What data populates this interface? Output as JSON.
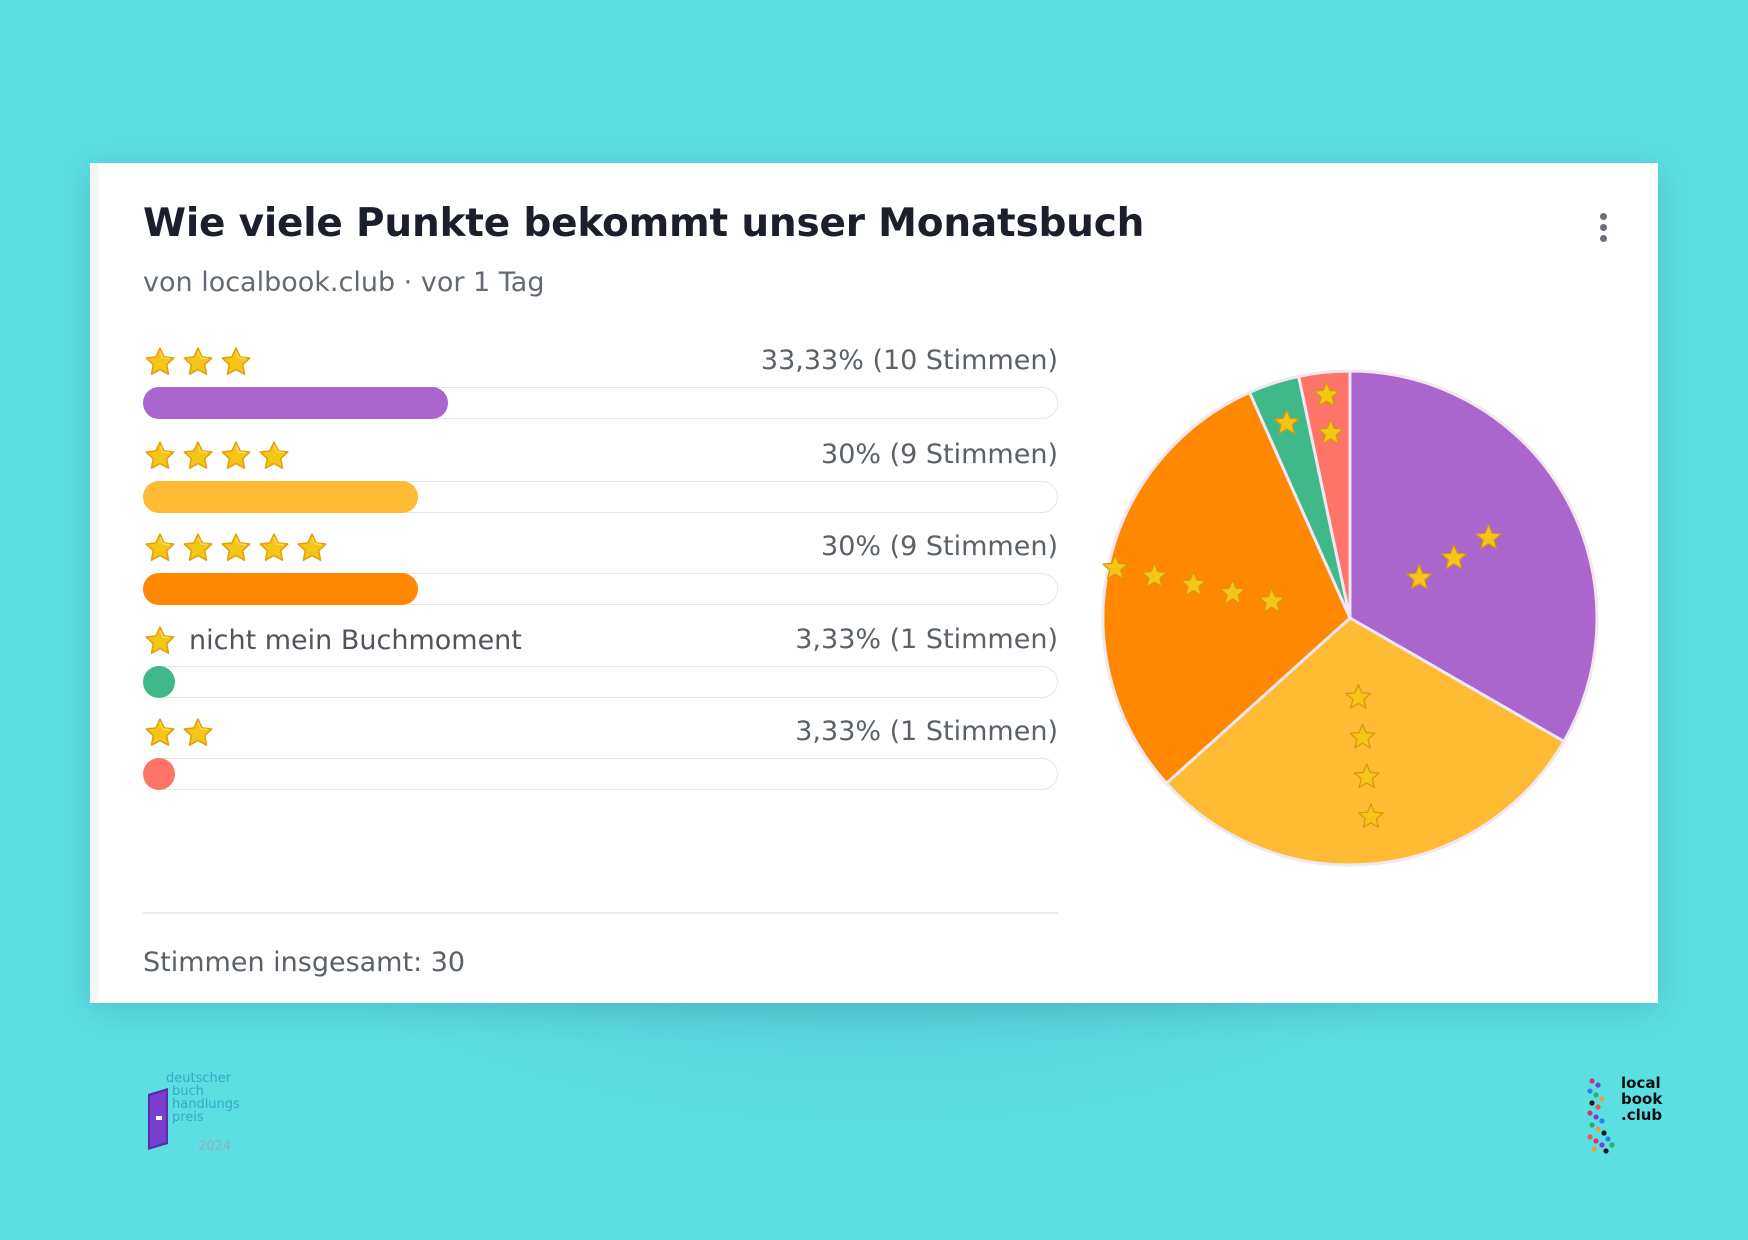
{
  "poll": {
    "title": "Wie viele Punkte bekommt unser Monatsbuch",
    "meta": "von localbook.club · vor 1 Tag",
    "total": "Stimmen insgesamt: 30"
  },
  "options": [
    {
      "stars": 3,
      "label": "",
      "result": "33,33% (10 Stimmen)",
      "percent": 33.33,
      "color": "#aa66cc"
    },
    {
      "stars": 4,
      "label": "",
      "result": "30% (9 Stimmen)",
      "percent": 30,
      "color": "#ffbb33"
    },
    {
      "stars": 5,
      "label": "",
      "result": "30% (9 Stimmen)",
      "percent": 30,
      "color": "#ff8800"
    },
    {
      "stars": 1,
      "label": "nicht mein Buchmoment",
      "result": "3,33% (1 Stimmen)",
      "percent": 3.33,
      "color": "#40b98a"
    },
    {
      "stars": 2,
      "label": "",
      "result": "3,33% (1 Stimmen)",
      "percent": 3.33,
      "color": "#ff7468"
    }
  ],
  "chart_data": {
    "type": "pie",
    "slices": [
      {
        "name": "3 Sterne",
        "value": 10,
        "color": "#aa66cc"
      },
      {
        "name": "4 Sterne",
        "value": 9,
        "color": "#ffbb33"
      },
      {
        "name": "5 Sterne",
        "value": 9,
        "color": "#ff8800"
      },
      {
        "name": "1 Stern - nicht mein Buchmoment",
        "value": 1,
        "color": "#40b98a"
      },
      {
        "name": "2 Sterne",
        "value": 1,
        "color": "#ff7468"
      }
    ]
  },
  "icons": {
    "star": "star-icon",
    "menu": "more-vertical-icon"
  },
  "logos": {
    "left": [
      "deutscher",
      "buch",
      "handlungs",
      "preis",
      "2024"
    ],
    "right": [
      "local",
      "book",
      ".club"
    ]
  }
}
